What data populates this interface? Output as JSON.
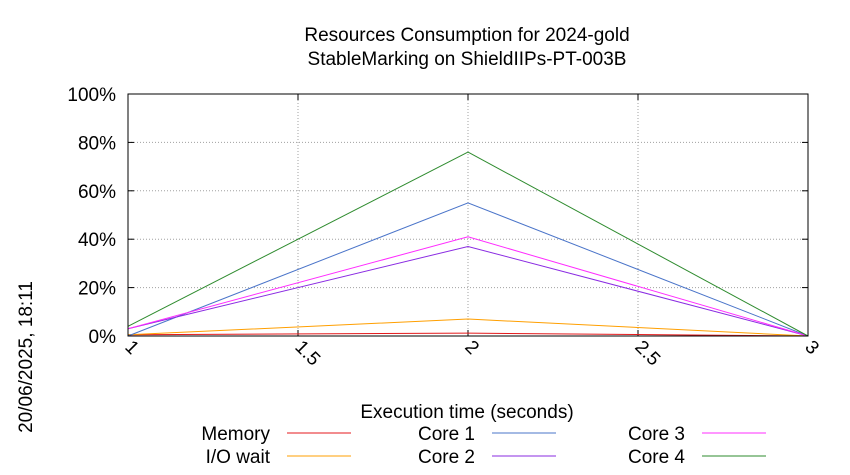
{
  "chart_data": {
    "type": "line",
    "title_lines": [
      "Resources Consumption for 2024-gold",
      "StableMarking on ShieldIIPs-PT-003B"
    ],
    "xlabel": "Execution time (seconds)",
    "ylabel": "",
    "side_label": "20/06/2025, 18:11",
    "xlim": [
      1,
      3
    ],
    "ylim": [
      0,
      100
    ],
    "x_ticks": [
      "1",
      "1.5",
      "2",
      "2.5",
      "3"
    ],
    "y_ticks": [
      "0%",
      "20%",
      "40%",
      "60%",
      "80%",
      "100%"
    ],
    "grid": true,
    "legend_position": "bottom",
    "x": [
      1,
      2,
      3
    ],
    "series": [
      {
        "name": "Memory",
        "color": "#e41a1c",
        "values": [
          0.5,
          1.2,
          0
        ]
      },
      {
        "name": "I/O wait",
        "color": "#ff9f00",
        "values": [
          0.5,
          7,
          0
        ]
      },
      {
        "name": "Core 1",
        "color": "#4a74c9",
        "values": [
          0,
          55,
          0
        ]
      },
      {
        "name": "Core 2",
        "color": "#8a2be2",
        "values": [
          3,
          37,
          0
        ]
      },
      {
        "name": "Core 3",
        "color": "#ff2cff",
        "values": [
          3,
          41,
          0
        ]
      },
      {
        "name": "Core 4",
        "color": "#2e8b2e",
        "values": [
          4,
          76,
          0
        ]
      }
    ]
  }
}
